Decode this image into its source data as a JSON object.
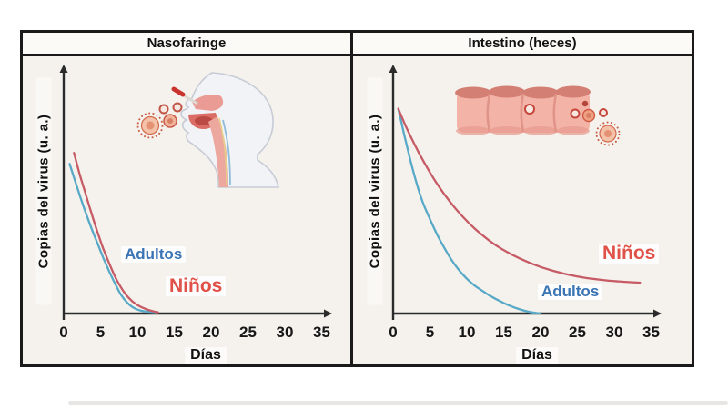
{
  "figure": {
    "panels": [
      {
        "title": "Nasofaringe",
        "illustration_icon": "head-nasal-swab-icon"
      },
      {
        "title": "Intestino (heces)",
        "illustration_icon": "intestine-virus-icon"
      }
    ]
  },
  "chart_data": [
    {
      "type": "line",
      "title": "Nasofaringe",
      "xlabel": "Días",
      "ylabel": "Copias del virus (u. a.)",
      "xlim": [
        0,
        37
      ],
      "ylim": [
        0,
        1
      ],
      "xticks": [
        0,
        5,
        10,
        15,
        20,
        25,
        30,
        35
      ],
      "grid": false,
      "axis_color": "#2b2b2b",
      "legend_position": "inline-labels",
      "series": [
        {
          "name": "Adultos",
          "color": "#57a9c7",
          "label_color": "#3a74b4",
          "x": [
            0.8,
            1.5,
            2.2,
            3.0,
            3.8,
            4.6,
            5.4,
            6.2,
            7.0,
            7.8,
            8.6,
            9.4,
            10.2,
            11.0,
            11.8,
            12.5
          ],
          "y": [
            0.61,
            0.545,
            0.48,
            0.41,
            0.345,
            0.285,
            0.225,
            0.17,
            0.12,
            0.075,
            0.045,
            0.025,
            0.014,
            0.009,
            0.007,
            0.005
          ]
        },
        {
          "name": "Niños",
          "color": "#c65b66",
          "label_color": "#e05148",
          "x": [
            1.4,
            2.1,
            2.9,
            3.7,
            4.5,
            5.3,
            6.1,
            6.9,
            7.7,
            8.5,
            9.3,
            10.1,
            11.0,
            11.9,
            12.8
          ],
          "y": [
            0.655,
            0.575,
            0.495,
            0.415,
            0.34,
            0.27,
            0.21,
            0.155,
            0.11,
            0.075,
            0.05,
            0.033,
            0.02,
            0.011,
            0.005
          ]
        }
      ]
    },
    {
      "type": "line",
      "title": "Intestino (heces)",
      "xlabel": "Días",
      "ylabel": "Copias del virus (u. a.)",
      "xlim": [
        0,
        37
      ],
      "ylim": [
        0,
        1
      ],
      "xticks": [
        0,
        5,
        10,
        15,
        20,
        25,
        30,
        35
      ],
      "grid": false,
      "axis_color": "#2b2b2b",
      "legend_position": "inline-labels",
      "series": [
        {
          "name": "Adultos",
          "color": "#57a9c7",
          "label_color": "#3a74b4",
          "x": [
            0.7,
            1.5,
            2.3,
            3.1,
            4.0,
            5.0,
            6.0,
            7.0,
            8.0,
            9.0,
            10.0,
            11.0,
            12.0,
            13.0,
            14.0,
            15.0,
            16.0,
            17.0,
            18.0,
            19.0,
            20.0
          ],
          "y": [
            0.835,
            0.73,
            0.63,
            0.54,
            0.455,
            0.385,
            0.32,
            0.265,
            0.215,
            0.175,
            0.142,
            0.115,
            0.095,
            0.075,
            0.058,
            0.043,
            0.03,
            0.019,
            0.01,
            0.004,
            0.0
          ]
        },
        {
          "name": "Niños",
          "color": "#c65b66",
          "label_color": "#e05148",
          "x": [
            0.7,
            2.0,
            3.5,
            5.0,
            6.5,
            8.0,
            9.5,
            11.0,
            12.5,
            14.0,
            15.5,
            17.0,
            18.5,
            20.0,
            21.5,
            23.0,
            24.5,
            26.0,
            27.5,
            29.0,
            30.5,
            32.0,
            33.5
          ],
          "y": [
            0.835,
            0.745,
            0.655,
            0.575,
            0.505,
            0.445,
            0.393,
            0.348,
            0.31,
            0.277,
            0.25,
            0.227,
            0.207,
            0.19,
            0.176,
            0.164,
            0.154,
            0.146,
            0.14,
            0.135,
            0.131,
            0.128,
            0.126
          ]
        }
      ]
    }
  ]
}
